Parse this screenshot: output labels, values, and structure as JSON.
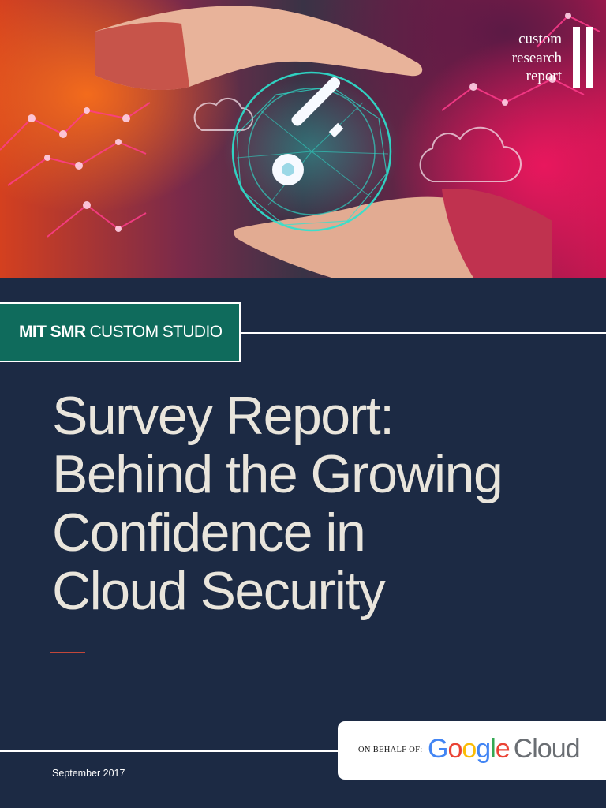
{
  "report_tag": {
    "line1": "custom",
    "line2": "research",
    "line3": "report"
  },
  "brand": {
    "bold": "MIT SMR",
    "regular": "CUSTOM STUDIO"
  },
  "title": {
    "line1": "Survey Report:",
    "line2": "Behind the Growing",
    "line3": "Confidence in",
    "line4": "Cloud Security"
  },
  "sponsor": {
    "label": "ON BEHALF OF:",
    "logo_letters": [
      "G",
      "o",
      "o",
      "g",
      "l",
      "e"
    ],
    "logo_product": "Cloud"
  },
  "date": "September 2017",
  "colors": {
    "background": "#1c2a44",
    "brand_green": "#0f6b5c",
    "title_text": "#e9e5dc",
    "accent_rule": "#c2473a",
    "google_blue": "#4285f4",
    "google_red": "#ea4335",
    "google_yellow": "#fbbc05",
    "google_green": "#34a853"
  },
  "hero_icons": [
    "hands-icon",
    "key-icon",
    "cloud-icon",
    "network-icon"
  ]
}
